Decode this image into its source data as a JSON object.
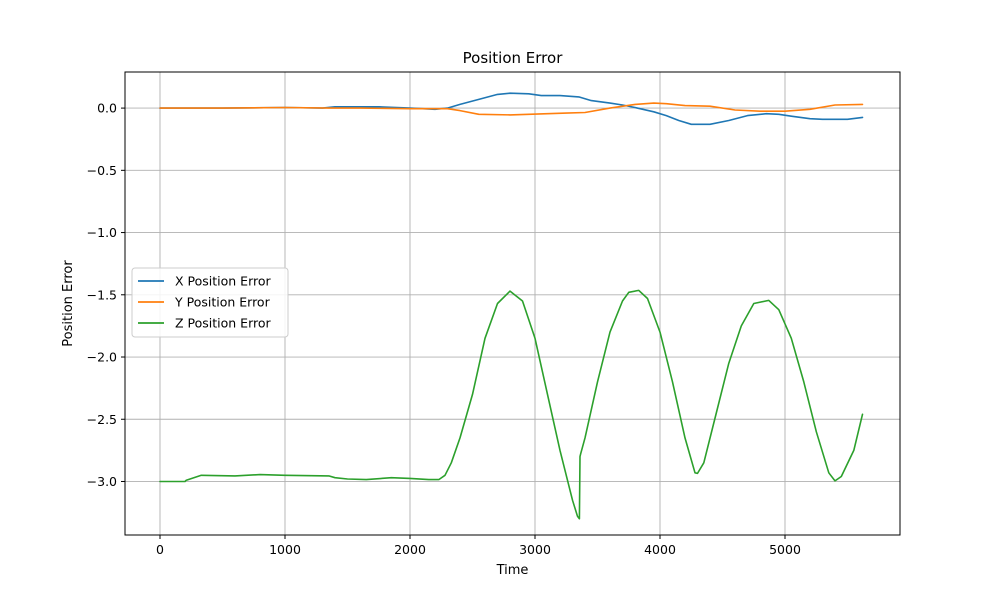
{
  "chart_data": {
    "type": "line",
    "title": "Position Error",
    "xlabel": "Time",
    "ylabel": "Position Error",
    "xlim": [
      -280,
      5920
    ],
    "ylim": [
      -3.43,
      0.29
    ],
    "xticks": [
      0,
      1000,
      2000,
      3000,
      4000,
      5000
    ],
    "yticks": [
      0.0,
      -0.5,
      -1.0,
      -1.5,
      -2.0,
      -2.5,
      -3.0
    ],
    "grid": true,
    "legend_position": "center-left",
    "series": [
      {
        "name": "X Position Error",
        "color": "#1f77b4",
        "x": [
          0,
          500,
          1000,
          1300,
          1400,
          1750,
          2000,
          2200,
          2300,
          2400,
          2550,
          2700,
          2800,
          2950,
          3050,
          3200,
          3350,
          3450,
          3600,
          3700,
          3800,
          3950,
          4050,
          4150,
          4250,
          4400,
          4550,
          4700,
          4850,
          4950,
          5050,
          5200,
          5300,
          5400,
          5500,
          5620
        ],
        "y": [
          0.0,
          0.0,
          0.005,
          0.0,
          0.01,
          0.01,
          0.0,
          -0.01,
          0.0,
          0.03,
          0.07,
          0.11,
          0.12,
          0.115,
          0.1,
          0.1,
          0.09,
          0.06,
          0.04,
          0.025,
          0.005,
          -0.03,
          -0.06,
          -0.1,
          -0.13,
          -0.13,
          -0.1,
          -0.06,
          -0.045,
          -0.05,
          -0.065,
          -0.085,
          -0.09,
          -0.09,
          -0.09,
          -0.075
        ]
      },
      {
        "name": "Y Position Error",
        "color": "#ff7f0e",
        "x": [
          0,
          500,
          1000,
          1350,
          1600,
          2000,
          2300,
          2400,
          2550,
          2800,
          2950,
          3100,
          3250,
          3400,
          3600,
          3800,
          3950,
          4050,
          4200,
          4400,
          4600,
          4800,
          5000,
          5200,
          5400,
          5620
        ],
        "y": [
          0.0,
          0.0,
          0.005,
          0.0,
          0.0,
          -0.005,
          -0.005,
          -0.02,
          -0.05,
          -0.055,
          -0.05,
          -0.045,
          -0.04,
          -0.035,
          0.0,
          0.03,
          0.04,
          0.035,
          0.02,
          0.015,
          -0.015,
          -0.025,
          -0.025,
          -0.01,
          0.025,
          0.03
        ]
      },
      {
        "name": "Z Position Error",
        "color": "#2ca02c",
        "x": [
          0,
          200,
          210,
          330,
          600,
          800,
          1000,
          1350,
          1400,
          1500,
          1650,
          1850,
          2000,
          2150,
          2230,
          2280,
          2330,
          2400,
          2500,
          2600,
          2700,
          2800,
          2900,
          3000,
          3100,
          3200,
          3300,
          3340,
          3355,
          3360,
          3365,
          3400,
          3500,
          3600,
          3700,
          3750,
          3830,
          3900,
          4000,
          4100,
          4200,
          4280,
          4300,
          4350,
          4450,
          4550,
          4650,
          4750,
          4870,
          4950,
          5050,
          5150,
          5250,
          5350,
          5400,
          5450,
          5550,
          5620
        ],
        "y": [
          -3.0,
          -3.0,
          -2.99,
          -2.95,
          -2.955,
          -2.945,
          -2.95,
          -2.955,
          -2.97,
          -2.98,
          -2.985,
          -2.97,
          -2.975,
          -2.985,
          -2.985,
          -2.95,
          -2.85,
          -2.65,
          -2.3,
          -1.85,
          -1.57,
          -1.47,
          -1.55,
          -1.85,
          -2.3,
          -2.75,
          -3.15,
          -3.28,
          -3.3,
          -2.8,
          -2.78,
          -2.65,
          -2.2,
          -1.8,
          -1.55,
          -1.48,
          -1.465,
          -1.53,
          -1.8,
          -2.2,
          -2.65,
          -2.93,
          -2.935,
          -2.85,
          -2.45,
          -2.05,
          -1.75,
          -1.57,
          -1.545,
          -1.62,
          -1.85,
          -2.2,
          -2.6,
          -2.93,
          -2.995,
          -2.96,
          -2.75,
          -2.46
        ]
      }
    ]
  }
}
